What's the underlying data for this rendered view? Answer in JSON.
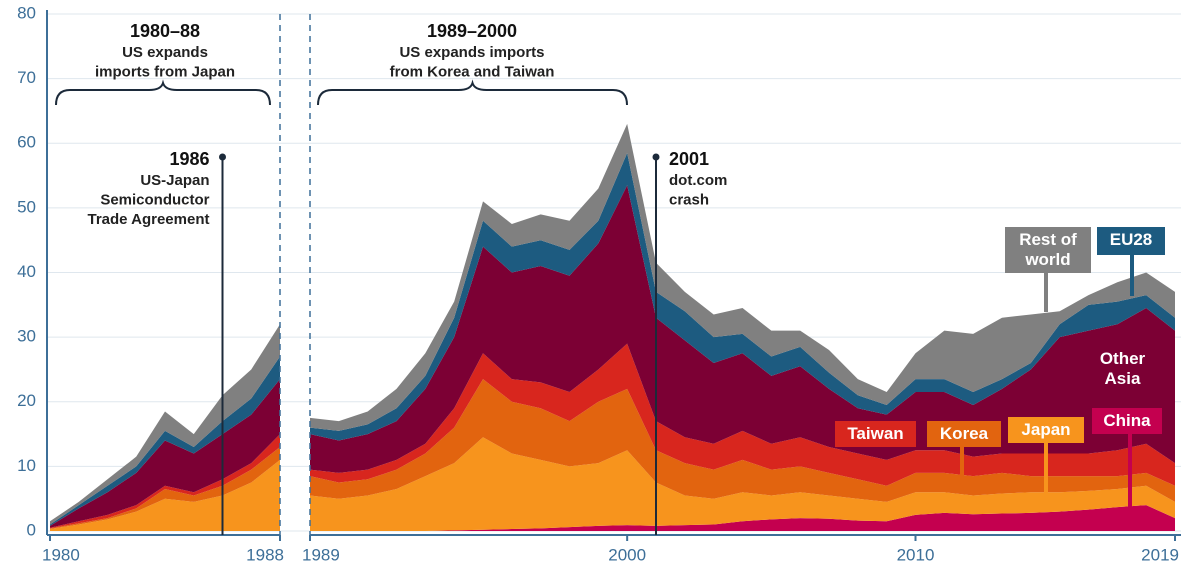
{
  "chart_data": {
    "type": "stacked_area",
    "x": [
      1980,
      1981,
      1982,
      1983,
      1984,
      1985,
      1986,
      1987,
      1988,
      1989,
      1990,
      1991,
      1992,
      1993,
      1994,
      1995,
      1996,
      1997,
      1998,
      1999,
      2000,
      2001,
      2002,
      2003,
      2004,
      2005,
      2006,
      2007,
      2008,
      2009,
      2010,
      2011,
      2012,
      2013,
      2014,
      2015,
      2016,
      2017,
      2018,
      2019
    ],
    "x_break": [
      1988,
      1989
    ],
    "xlim": [
      1980,
      2019
    ],
    "xticks": [
      1980,
      1988,
      1989,
      2000,
      2010,
      2019
    ],
    "ylim": [
      0,
      80
    ],
    "yticks": [
      0,
      10,
      20,
      30,
      40,
      50,
      60,
      70,
      80
    ],
    "grid": true,
    "series": [
      {
        "name": "China",
        "color": "#c4004f",
        "values": [
          0,
          0,
          0,
          0,
          0,
          0,
          0,
          0,
          0,
          0,
          0,
          0,
          0,
          0,
          0.1,
          0.2,
          0.3,
          0.4,
          0.6,
          0.8,
          0.9,
          0.8,
          0.9,
          1,
          1.5,
          1.8,
          2,
          1.9,
          1.6,
          1.5,
          2.5,
          2.8,
          2.6,
          2.7,
          2.8,
          3,
          3.3,
          3.7,
          4,
          2
        ]
      },
      {
        "name": "Japan",
        "color": "#f7941d",
        "values": [
          0.3,
          1,
          1.8,
          3,
          5,
          4.5,
          5.5,
          7.5,
          11,
          5.5,
          5,
          5.5,
          6.5,
          8.5,
          10.4,
          14.3,
          11.7,
          10.6,
          9.4,
          9.7,
          11.6,
          6.7,
          4.6,
          4,
          4.5,
          3.7,
          4,
          3.6,
          3.4,
          3,
          3.5,
          3.2,
          2.9,
          3.1,
          3.2,
          3,
          2.9,
          2.8,
          3,
          2.5
        ]
      },
      {
        "name": "Korea",
        "color": "#e2640f",
        "values": [
          0.1,
          0.2,
          0.2,
          0.5,
          1.5,
          1,
          1.5,
          2,
          2,
          3,
          2.5,
          2.5,
          3,
          3.5,
          5.5,
          9,
          8,
          8,
          7,
          9.5,
          9.5,
          5,
          5,
          4.5,
          5,
          4,
          4,
          3.5,
          3,
          2.5,
          3,
          3,
          3,
          3.2,
          2.5,
          2.5,
          2.3,
          2,
          2,
          2.5
        ]
      },
      {
        "name": "Taiwan",
        "color": "#d8261e",
        "values": [
          0.1,
          0.3,
          0.5,
          0.5,
          0.5,
          0.5,
          1,
          1,
          2,
          1,
          1.5,
          1.5,
          1.5,
          1.5,
          3,
          4,
          3.5,
          4,
          4.5,
          5,
          7,
          4.5,
          4,
          4,
          4.5,
          4,
          4.5,
          4,
          4,
          4,
          3.5,
          3.5,
          3,
          3,
          3.5,
          3.5,
          3.5,
          4,
          4.5,
          3.5
        ]
      },
      {
        "name": "Other Asia",
        "color": "#7c0034",
        "values": [
          0.3,
          2,
          3.5,
          5,
          7,
          6,
          7,
          7.5,
          8.5,
          5.5,
          5,
          5.5,
          6,
          8.5,
          11,
          16.5,
          16.5,
          18,
          18,
          19.5,
          24.5,
          16,
          15,
          12.5,
          12,
          10.5,
          11,
          9,
          7,
          7,
          9,
          9,
          8,
          10,
          13,
          18,
          19,
          19.5,
          21,
          20.5
        ]
      },
      {
        "name": "EU28",
        "color": "#1d5b80",
        "values": [
          0.2,
          0.5,
          1,
          1,
          1.5,
          1,
          2,
          2.5,
          3.5,
          1,
          1.5,
          1.5,
          2,
          2,
          3,
          4,
          4,
          4,
          4,
          3.5,
          5,
          4,
          4.5,
          4,
          3,
          3,
          3,
          2.5,
          2,
          1.5,
          2,
          2,
          2,
          1.5,
          1,
          2,
          4,
          3.5,
          2,
          2
        ]
      },
      {
        "name": "Rest of world",
        "color": "#808080",
        "values": [
          0.5,
          0.5,
          1,
          1.5,
          3,
          2,
          4,
          4.5,
          5,
          1.5,
          1.5,
          2,
          3,
          3.5,
          2.5,
          3,
          3.5,
          4,
          4.5,
          5,
          4.5,
          4.5,
          3,
          3.5,
          4,
          4,
          2.5,
          3.5,
          2.5,
          2,
          4,
          7.5,
          9,
          9.5,
          7.5,
          2,
          1.5,
          3,
          3.5,
          4
        ]
      }
    ],
    "annotations": [
      {
        "heading": "1980–88",
        "lines": [
          "US expands",
          "imports from Japan"
        ]
      },
      {
        "heading": "1989–2000",
        "lines": [
          "US expands imports",
          "from Korea and Taiwan"
        ]
      },
      {
        "heading": "1986",
        "lines": [
          "US-Japan",
          "Semiconductor",
          "Trade Agreement"
        ],
        "x": 1986
      },
      {
        "heading": "2001",
        "lines": [
          "dot.com",
          "crash"
        ],
        "x": 2001
      }
    ]
  }
}
